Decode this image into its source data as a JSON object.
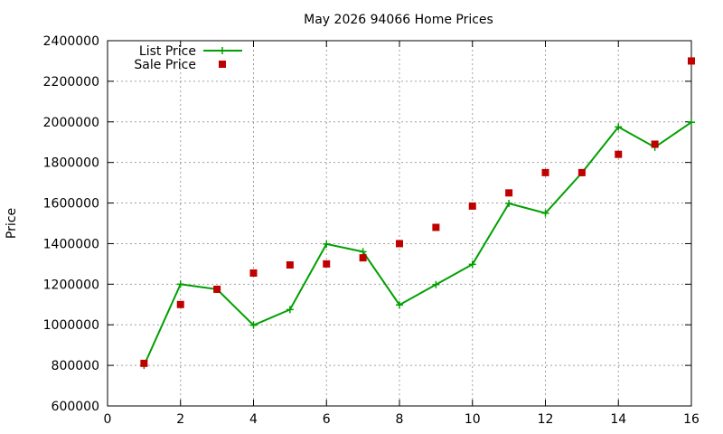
{
  "chart_data": {
    "type": "line",
    "title": "May 2026 94066 Home Prices",
    "xlabel": "",
    "ylabel": "Price",
    "xlim": [
      0,
      16
    ],
    "ylim": [
      600000,
      2400000
    ],
    "xticks": [
      0,
      2,
      4,
      6,
      8,
      10,
      12,
      14,
      16
    ],
    "yticks": [
      600000,
      800000,
      1000000,
      1200000,
      1400000,
      1600000,
      1800000,
      2000000,
      2200000,
      2400000
    ],
    "grid": true,
    "legend_position": "top-left",
    "series": [
      {
        "name": "List Price",
        "style": "line-plus",
        "color": "#00a000",
        "x": [
          1,
          2,
          3,
          4,
          5,
          6,
          7,
          8,
          9,
          10,
          11,
          12,
          13,
          14,
          15,
          16
        ],
        "values": [
          800000,
          1200000,
          1175000,
          998000,
          1075000,
          1398000,
          1360000,
          1098000,
          1198000,
          1298000,
          1598000,
          1550000,
          1749000,
          1975000,
          1875000,
          1998000
        ]
      },
      {
        "name": "Sale Price",
        "style": "square",
        "color": "#c00000",
        "x": [
          1,
          2,
          3,
          4,
          5,
          6,
          7,
          8,
          9,
          10,
          11,
          12,
          13,
          14,
          15,
          16
        ],
        "values": [
          810000,
          1100000,
          1175000,
          1255000,
          1295000,
          1300000,
          1330000,
          1400000,
          1480000,
          1585000,
          1650000,
          1750000,
          1750000,
          1840000,
          1890000,
          2300000
        ]
      }
    ]
  }
}
